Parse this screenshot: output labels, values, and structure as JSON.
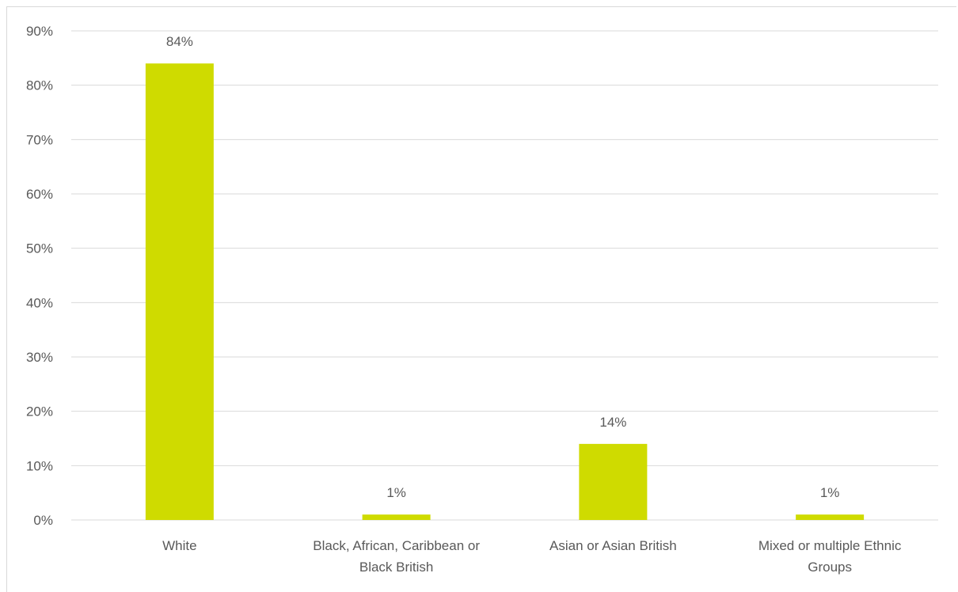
{
  "chart_data": {
    "type": "bar",
    "categories": [
      [
        "White"
      ],
      [
        "Black, African, Caribbean or",
        "Black British"
      ],
      [
        "Asian or Asian British"
      ],
      [
        "Mixed or multiple Ethnic",
        "Groups"
      ]
    ],
    "values": [
      84,
      1,
      14,
      1
    ],
    "data_labels": [
      "84%",
      "1%",
      "14%",
      "1%"
    ],
    "y_ticks": [
      "0%",
      "10%",
      "20%",
      "30%",
      "40%",
      "50%",
      "60%",
      "70%",
      "80%",
      "90%"
    ],
    "ylim": [
      0,
      90
    ],
    "grid": true,
    "legend": "none",
    "title": "",
    "xlabel": "",
    "ylabel": "",
    "bar_color": "#cfdb00",
    "grid_color": "#d9d9d9",
    "text_color": "#595959"
  }
}
